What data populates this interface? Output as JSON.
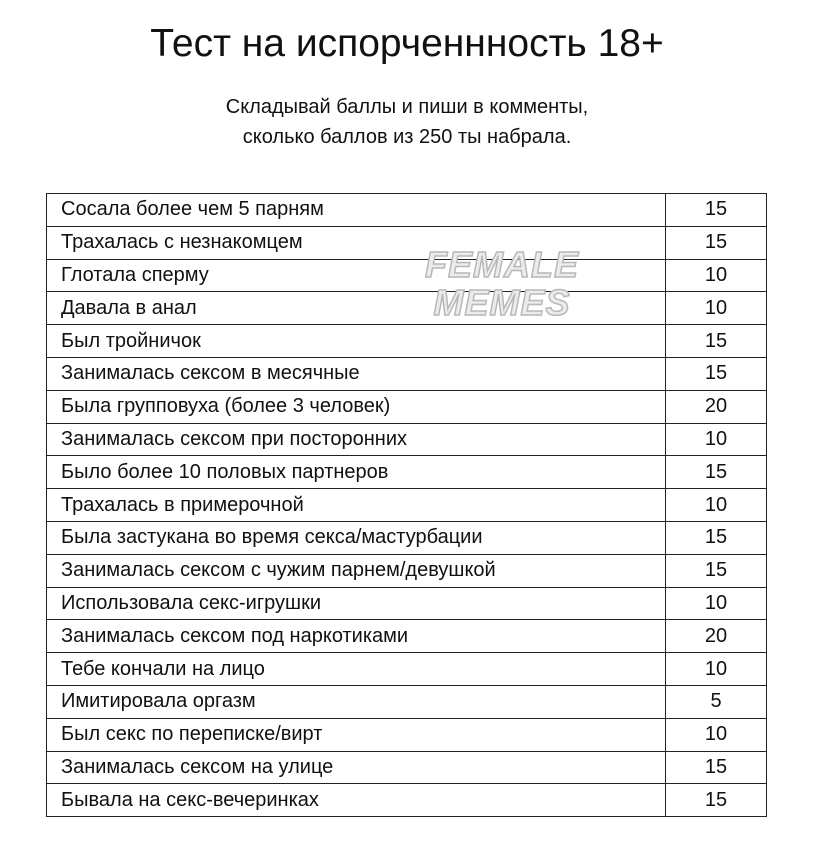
{
  "title": "Тест на испорченнность 18+",
  "subtitle": [
    "Складывай баллы и пиши в комменты,",
    "сколько баллов из 250 ты набрала."
  ],
  "watermark": [
    "FEMALE",
    "MEMES"
  ],
  "rows": [
    {
      "q": "Сосала более чем 5 парням",
      "p": "15"
    },
    {
      "q": "Трахалась с незнакомцем",
      "p": "15"
    },
    {
      "q": "Глотала сперму",
      "p": "10"
    },
    {
      "q": "Давала в анал",
      "p": "10"
    },
    {
      "q": "Был тройничок",
      "p": "15"
    },
    {
      "q": "Занималась сексом в месячные",
      "p": "15"
    },
    {
      "q": "Была групповуха (более 3 человек)",
      "p": "20"
    },
    {
      "q": "Занималась сексом при посторонних",
      "p": "10"
    },
    {
      "q": "Было более 10 половых партнеров",
      "p": "15"
    },
    {
      "q": "Трахалась в примерочной",
      "p": "10"
    },
    {
      "q": "Была застукана во время секса/мастурбации",
      "p": "15"
    },
    {
      "q": "Занималась сексом с чужим парнем/девушкой",
      "p": "15"
    },
    {
      "q": "Использовала секс-игрушки",
      "p": "10"
    },
    {
      "q": "Занималась сексом под наркотиками",
      "p": "20"
    },
    {
      "q": "Тебе кончали на лицо",
      "p": "10"
    },
    {
      "q": "Имитировала оргазм",
      "p": "5"
    },
    {
      "q": "Был секс по переписке/вирт",
      "p": "10"
    },
    {
      "q": "Занималась сексом на улице",
      "p": "15"
    },
    {
      "q": "Бывала на секс-вечеринках",
      "p": "15"
    }
  ]
}
